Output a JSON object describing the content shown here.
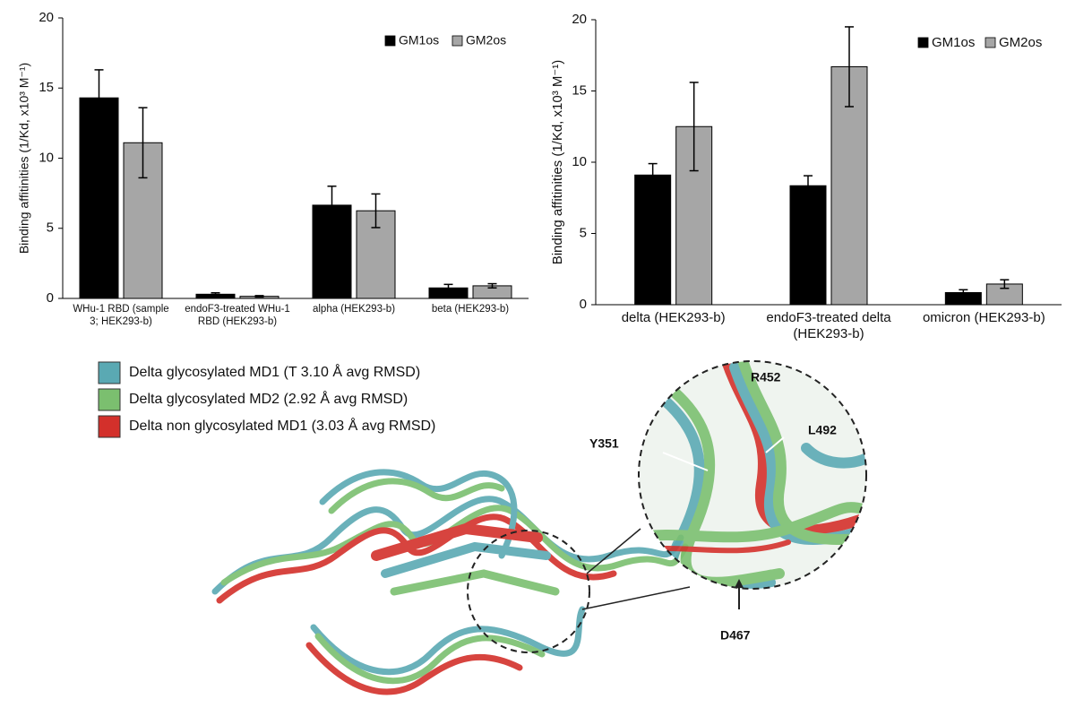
{
  "chart_data": [
    {
      "type": "bar",
      "ylabel": "Binding affitinities (1/Kd, x10³ M⁻¹)",
      "categories": [
        "WHu-1 RBD (sample 3; HEK293-b)",
        "endoF3-treated WHu-1 RBD (HEK293-b)",
        "alpha (HEK293-b)",
        "beta (HEK293-b)"
      ],
      "series": [
        {
          "name": "GM1os",
          "color": "#000000",
          "values": [
            14.3,
            0.3,
            6.65,
            0.75
          ],
          "errors": [
            2.0,
            0.1,
            1.35,
            0.25
          ]
        },
        {
          "name": "GM2os",
          "color": "#a6a6a6",
          "values": [
            11.1,
            0.15,
            6.25,
            0.9
          ],
          "errors": [
            2.5,
            0.05,
            1.2,
            0.15
          ]
        }
      ],
      "ylim": [
        0,
        20
      ],
      "yticks": [
        0,
        5,
        10,
        15,
        20
      ],
      "legend": "upper right"
    },
    {
      "type": "bar",
      "ylabel": "Binding affitinities (1/Kd, x10³ M⁻¹)",
      "categories": [
        "delta (HEK293-b)",
        "endoF3-treated delta (HEK293-b)",
        "omicron (HEK293-b)"
      ],
      "series": [
        {
          "name": "GM1os",
          "color": "#000000",
          "values": [
            9.1,
            8.35,
            0.85
          ],
          "errors": [
            0.8,
            0.7,
            0.2
          ]
        },
        {
          "name": "GM2os",
          "color": "#a6a6a6",
          "values": [
            12.5,
            16.7,
            1.45
          ],
          "errors": [
            3.1,
            2.8,
            0.3
          ]
        }
      ],
      "ylim": [
        0,
        20
      ],
      "yticks": [
        0,
        5,
        10,
        15,
        20
      ],
      "legend": "upper right"
    }
  ],
  "structure": {
    "legend": [
      "Delta glycosylated MD1 (T 3.10 Å avg RMSD)",
      "Delta glycosylated MD2 (2.92 Å avg RMSD)",
      "Delta non glycosylated MD1 (3.03 Å avg RMSD)"
    ],
    "residues": [
      "R452",
      "L492",
      "Y351",
      "D467"
    ]
  }
}
